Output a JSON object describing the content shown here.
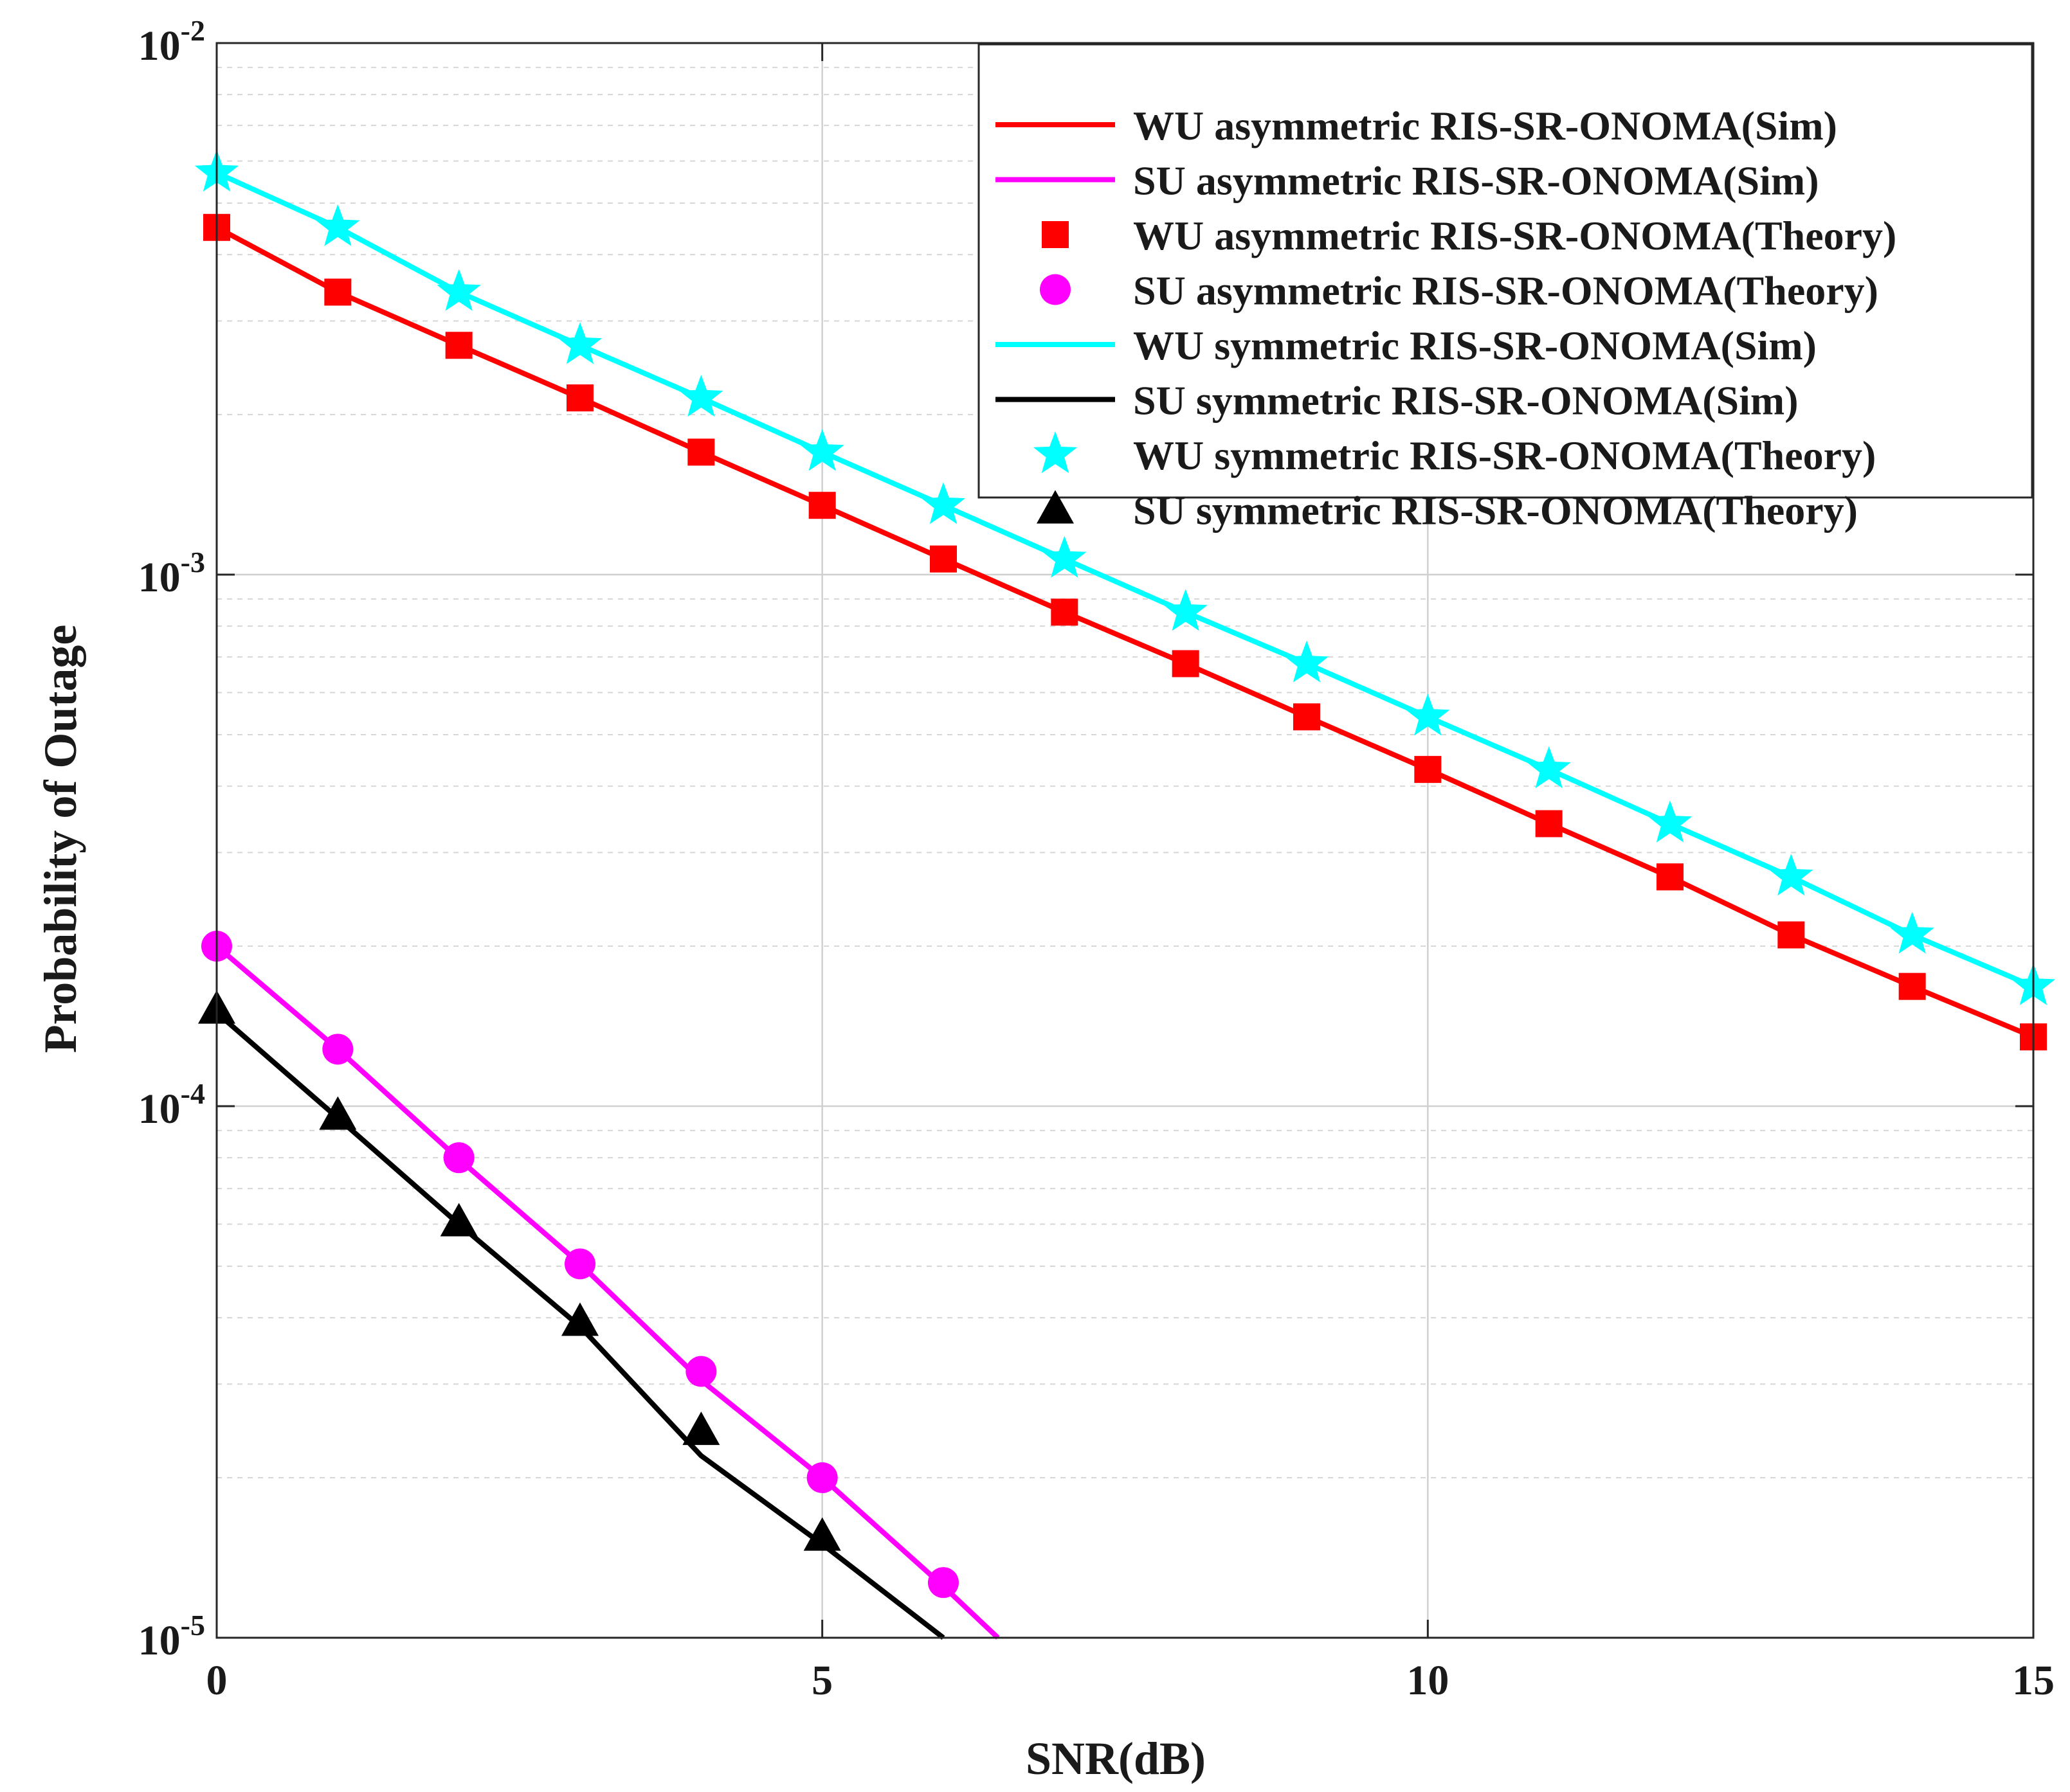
{
  "chart_data": {
    "type": "line",
    "title": "",
    "xlabel": "SNR(dB)",
    "ylabel": "Probability of Outage",
    "xlim": [
      0,
      15
    ],
    "ylim": [
      1e-05,
      0.01
    ],
    "yscale": "log",
    "grid": true,
    "legend_position": "top-right",
    "xticks": [
      0,
      5,
      10,
      15
    ],
    "xtick_labels": [
      "0",
      "5",
      "10",
      "15"
    ],
    "yticks": [
      1e-05,
      0.0001,
      0.001,
      0.01
    ],
    "ytick_labels": [
      {
        "base": "10",
        "exp": "-5"
      },
      {
        "base": "10",
        "exp": "-4"
      },
      {
        "base": "10",
        "exp": "-3"
      },
      {
        "base": "10",
        "exp": "-2"
      }
    ],
    "series": [
      {
        "name": "WU asymmetric RIS-SR-ONOMA(Sim)",
        "style": "line",
        "color": "#ff0000",
        "x": [
          0,
          1,
          2,
          3,
          4,
          5,
          6,
          7,
          8,
          9,
          10,
          11,
          12,
          13,
          14,
          15
        ],
        "y": [
          0.0045,
          0.0034,
          0.0027,
          0.00215,
          0.0017,
          0.00135,
          0.00107,
          0.00085,
          0.00068,
          0.00054,
          0.00043,
          0.00034,
          0.00027,
          0.00021,
          0.000168,
          0.000135
        ]
      },
      {
        "name": "SU asymmetric RIS-SR-ONOMA(Sim)",
        "style": "line",
        "color": "#ff00ff",
        "x": [
          0,
          1,
          2,
          3,
          4,
          5,
          6,
          6.45
        ],
        "y": [
          0.0002,
          0.000128,
          7.95e-05,
          5.05e-05,
          3.05e-05,
          2e-05,
          1.25e-05,
          1e-05
        ]
      },
      {
        "name": "WU asymmetric RIS-SR-ONOMA(Theory)",
        "style": "marker",
        "marker": "square",
        "color": "#ff0000",
        "x": [
          0,
          1,
          2,
          3,
          4,
          5,
          6,
          7,
          8,
          9,
          10,
          11,
          12,
          13,
          14,
          15
        ],
        "y": [
          0.0045,
          0.0034,
          0.0027,
          0.00215,
          0.0017,
          0.00135,
          0.00107,
          0.00085,
          0.00068,
          0.00054,
          0.00043,
          0.00034,
          0.00027,
          0.00021,
          0.000168,
          0.000135
        ]
      },
      {
        "name": "SU asymmetric RIS-SR-ONOMA(Theory)",
        "style": "marker",
        "marker": "circle",
        "color": "#ff00ff",
        "x": [
          0,
          1,
          2,
          3,
          4,
          5,
          6
        ],
        "y": [
          0.0002,
          0.000128,
          8e-05,
          5.05e-05,
          3.17e-05,
          2e-05,
          1.27e-05
        ]
      },
      {
        "name": "WU symmetric RIS-SR-ONOMA(Sim)",
        "style": "line",
        "color": "#00ffff",
        "x": [
          0,
          1,
          2,
          3,
          4,
          5,
          6,
          7,
          8,
          9,
          10,
          11,
          12,
          13,
          14,
          15
        ],
        "y": [
          0.0057,
          0.0045,
          0.0034,
          0.0027,
          0.00215,
          0.0017,
          0.00135,
          0.00107,
          0.00085,
          0.00068,
          0.00054,
          0.00043,
          0.00034,
          0.00027,
          0.00021,
          0.000168
        ]
      },
      {
        "name": "SU symmetric RIS-SR-ONOMA(Sim)",
        "style": "line",
        "color": "#000000",
        "x": [
          0,
          1,
          2,
          3,
          4,
          5,
          6
        ],
        "y": [
          0.00015,
          9.5e-05,
          6e-05,
          3.85e-05,
          2.2e-05,
          1.5e-05,
          1e-05
        ]
      },
      {
        "name": "WU symmetric RIS-SR-ONOMA(Theory)",
        "style": "marker",
        "marker": "star",
        "color": "#00ffff",
        "x": [
          0,
          1,
          2,
          3,
          4,
          5,
          6,
          7,
          8,
          9,
          10,
          11,
          12,
          13,
          14,
          15
        ],
        "y": [
          0.0057,
          0.0045,
          0.0034,
          0.0027,
          0.00215,
          0.0017,
          0.00135,
          0.00107,
          0.00085,
          0.00068,
          0.00054,
          0.00043,
          0.00034,
          0.00027,
          0.00021,
          0.000168
        ]
      },
      {
        "name": "SU symmetric RIS-SR-ONOMA(Theory)",
        "style": "marker",
        "marker": "triangle",
        "color": "#000000",
        "x": [
          0,
          1,
          2,
          3,
          4,
          5
        ],
        "y": [
          0.000152,
          9.6e-05,
          6.05e-05,
          3.93e-05,
          2.45e-05,
          1.55e-05
        ]
      }
    ]
  }
}
